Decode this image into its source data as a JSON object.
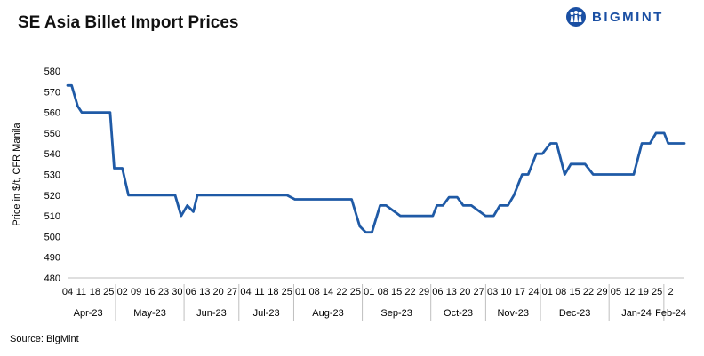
{
  "header": {
    "title": "SE Asia Billet Import Prices",
    "logo_text": "BIGMINT"
  },
  "footer": {
    "source": "Source: BigMint"
  },
  "colors": {
    "line": "#1f5aa6",
    "logo": "#1a4fa3",
    "axis": "#bfbfbf"
  },
  "chart_data": {
    "type": "line",
    "title": "SE Asia Billet Import Prices",
    "ylabel": "Price in $/t, CFR Manila",
    "xlabel": "",
    "ylim": [
      480,
      580
    ],
    "yticks": [
      480,
      490,
      500,
      510,
      520,
      530,
      540,
      550,
      560,
      570,
      580
    ],
    "grid": false,
    "legend": "none",
    "months": [
      {
        "label": "Apr-23",
        "days": [
          "04",
          "11",
          "18",
          "25"
        ]
      },
      {
        "label": "May-23",
        "days": [
          "02",
          "09",
          "16",
          "23",
          "30"
        ]
      },
      {
        "label": "Jun-23",
        "days": [
          "06",
          "13",
          "20",
          "27"
        ]
      },
      {
        "label": "Jul-23",
        "days": [
          "04",
          "11",
          "18",
          "25"
        ]
      },
      {
        "label": "Aug-23",
        "days": [
          "01",
          "08",
          "14",
          "22",
          "25"
        ]
      },
      {
        "label": "Sep-23",
        "days": [
          "01",
          "08",
          "15",
          "22",
          "29"
        ]
      },
      {
        "label": "Oct-23",
        "days": [
          "06",
          "13",
          "20",
          "27"
        ]
      },
      {
        "label": "Nov-23",
        "days": [
          "03",
          "10",
          "17",
          "24"
        ]
      },
      {
        "label": "Dec-23",
        "days": [
          "01",
          "08",
          "15",
          "22",
          "29"
        ]
      },
      {
        "label": "Jan-24",
        "days": [
          "05",
          "12",
          "19",
          "25"
        ]
      },
      {
        "label": "Feb-24",
        "days": [
          "2"
        ]
      }
    ],
    "series": [
      {
        "x": [
          "2023-04-04",
          "2023-04-06",
          "2023-04-09",
          "2023-04-11",
          "2023-04-14",
          "2023-04-18",
          "2023-04-22",
          "2023-04-25",
          "2023-04-27",
          "2023-05-01",
          "2023-05-04",
          "2023-05-09",
          "2023-05-13",
          "2023-05-16",
          "2023-05-20",
          "2023-05-23",
          "2023-05-27",
          "2023-05-30",
          "2023-06-02",
          "2023-06-05",
          "2023-06-07",
          "2023-06-13",
          "2023-06-20",
          "2023-06-27",
          "2023-07-04",
          "2023-07-11",
          "2023-07-18",
          "2023-07-21",
          "2023-07-25",
          "2023-08-01",
          "2023-08-08",
          "2023-08-14",
          "2023-08-19",
          "2023-08-22",
          "2023-08-26",
          "2023-08-29",
          "2023-09-01",
          "2023-09-05",
          "2023-09-08",
          "2023-09-15",
          "2023-09-22",
          "2023-09-29",
          "2023-10-01",
          "2023-10-03",
          "2023-10-06",
          "2023-10-09",
          "2023-10-13",
          "2023-10-16",
          "2023-10-20",
          "2023-10-27",
          "2023-10-31",
          "2023-11-03",
          "2023-11-07",
          "2023-11-10",
          "2023-11-14",
          "2023-11-17",
          "2023-11-21",
          "2023-11-24",
          "2023-11-28",
          "2023-12-01",
          "2023-12-05",
          "2023-12-08",
          "2023-12-12",
          "2023-12-15",
          "2023-12-19",
          "2023-12-22",
          "2023-12-29",
          "2024-01-05",
          "2024-01-08",
          "2024-01-12",
          "2024-01-16",
          "2024-01-19",
          "2024-01-23",
          "2024-01-25",
          "2024-01-30",
          "2024-02-02"
        ],
        "y": [
          573,
          573,
          563,
          560,
          560,
          560,
          560,
          560,
          533,
          533,
          520,
          520,
          520,
          520,
          520,
          520,
          520,
          510,
          515,
          512,
          520,
          520,
          520,
          520,
          520,
          520,
          520,
          520,
          518,
          518,
          518,
          518,
          518,
          518,
          505,
          502,
          502,
          515,
          515,
          510,
          510,
          510,
          510,
          515,
          515,
          519,
          519,
          515,
          515,
          510,
          510,
          515,
          515,
          520,
          530,
          530,
          540,
          540,
          545,
          545,
          530,
          535,
          535,
          535,
          530,
          530,
          530,
          530,
          530,
          545,
          545,
          550,
          550,
          545,
          545,
          545
        ]
      }
    ]
  }
}
